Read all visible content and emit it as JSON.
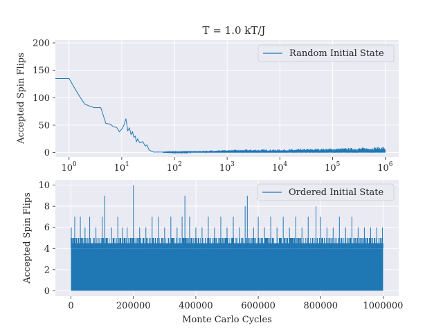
{
  "figure": {
    "title": "T = 1.0 kT/J",
    "background": "#ffffff",
    "axes_face": "#eaeaf2",
    "grid_color": "#ffffff",
    "series_color": "#1f77b4"
  },
  "chart_data": [
    {
      "type": "line",
      "title": "T = 1.0 kT/J",
      "xlabel": "",
      "ylabel": "Accepted Spin Flips",
      "xscale": "log",
      "xlim": [
        0.55,
        1800000
      ],
      "ylim": [
        -8,
        205
      ],
      "yticks": [
        0,
        50,
        100,
        150,
        200
      ],
      "yticklabels": [
        "0",
        "50",
        "100",
        "150",
        "200"
      ],
      "xticks": [
        1,
        10,
        100,
        1000,
        10000,
        100000,
        1000000
      ],
      "xticklabels": [
        "10",
        "10",
        "10",
        "10",
        "10",
        "10",
        "10"
      ],
      "xtick_exponents": [
        "0",
        "1",
        "2",
        "3",
        "4",
        "5",
        "6"
      ],
      "grid": true,
      "legend_position": "top-right",
      "series": [
        {
          "name": "Random Initial State",
          "x": [
            0.55,
            1,
            1.5,
            2,
            3,
            4,
            5,
            6,
            7,
            8,
            9,
            10,
            11,
            12,
            13,
            14,
            15,
            16,
            17,
            18,
            19,
            20,
            22,
            25,
            28,
            30,
            33,
            36,
            40,
            45,
            50,
            60,
            80,
            100,
            150,
            200,
            300,
            500,
            1000,
            3000,
            10000,
            30000,
            100000,
            300000,
            1000000
          ],
          "y": [
            135,
            135,
            106,
            88,
            82,
            82,
            53,
            52,
            47,
            46,
            38,
            43,
            50,
            62,
            40,
            45,
            33,
            38,
            28,
            30,
            20,
            25,
            18,
            20,
            12,
            14,
            5,
            3,
            1,
            1,
            1,
            1,
            2,
            1,
            2,
            2,
            2,
            2,
            3,
            3,
            3,
            4,
            5,
            5,
            6
          ],
          "noise_max": [
            0,
            0,
            0,
            0,
            0,
            0,
            0,
            0,
            0,
            0,
            0,
            0,
            0,
            0,
            0,
            0,
            0,
            0,
            0,
            0,
            0,
            0,
            0,
            0,
            0,
            0,
            0,
            0,
            0,
            0,
            0,
            0,
            1,
            2,
            2,
            3,
            3,
            4,
            5,
            6,
            6,
            7,
            8,
            9,
            11
          ]
        }
      ]
    },
    {
      "type": "line",
      "title": "",
      "xlabel": "Monte Carlo Cycles",
      "ylabel": "Accepted Spin Flips",
      "xscale": "linear",
      "xlim": [
        -50000,
        1050000
      ],
      "ylim": [
        -0.5,
        10.5
      ],
      "yticks": [
        0,
        2,
        4,
        6,
        8,
        10
      ],
      "yticklabels": [
        "0",
        "2",
        "4",
        "6",
        "8",
        "10"
      ],
      "xticks": [
        0,
        200000,
        400000,
        600000,
        800000,
        1000000
      ],
      "xticklabels": [
        "0",
        "200000",
        "400000",
        "600000",
        "800000",
        "1000000"
      ],
      "grid": true,
      "legend_position": "top-right",
      "series": [
        {
          "name": "Ordered Initial State",
          "x_range": [
            0,
            1000000
          ],
          "base_level": 4,
          "typical_max": 5,
          "spikes": [
            {
              "x": 1000,
              "y": 6
            },
            {
              "x": 12000,
              "y": 7
            },
            {
              "x": 30000,
              "y": 7
            },
            {
              "x": 45000,
              "y": 6
            },
            {
              "x": 60000,
              "y": 7
            },
            {
              "x": 80000,
              "y": 6
            },
            {
              "x": 100000,
              "y": 7
            },
            {
              "x": 108000,
              "y": 9
            },
            {
              "x": 130000,
              "y": 6
            },
            {
              "x": 150000,
              "y": 7
            },
            {
              "x": 165000,
              "y": 6
            },
            {
              "x": 180000,
              "y": 6
            },
            {
              "x": 200000,
              "y": 10
            },
            {
              "x": 220000,
              "y": 6
            },
            {
              "x": 240000,
              "y": 6
            },
            {
              "x": 260000,
              "y": 7
            },
            {
              "x": 280000,
              "y": 7
            },
            {
              "x": 300000,
              "y": 6
            },
            {
              "x": 320000,
              "y": 7
            },
            {
              "x": 340000,
              "y": 6
            },
            {
              "x": 356000,
              "y": 7
            },
            {
              "x": 365000,
              "y": 9
            },
            {
              "x": 380000,
              "y": 7
            },
            {
              "x": 400000,
              "y": 6
            },
            {
              "x": 420000,
              "y": 6
            },
            {
              "x": 440000,
              "y": 7
            },
            {
              "x": 460000,
              "y": 6
            },
            {
              "x": 480000,
              "y": 7
            },
            {
              "x": 500000,
              "y": 6
            },
            {
              "x": 520000,
              "y": 7
            },
            {
              "x": 540000,
              "y": 6
            },
            {
              "x": 558000,
              "y": 8
            },
            {
              "x": 565000,
              "y": 9
            },
            {
              "x": 585000,
              "y": 6
            },
            {
              "x": 600000,
              "y": 7
            },
            {
              "x": 620000,
              "y": 6
            },
            {
              "x": 640000,
              "y": 7
            },
            {
              "x": 660000,
              "y": 6
            },
            {
              "x": 680000,
              "y": 7
            },
            {
              "x": 700000,
              "y": 6
            },
            {
              "x": 720000,
              "y": 7
            },
            {
              "x": 740000,
              "y": 6
            },
            {
              "x": 760000,
              "y": 7
            },
            {
              "x": 785000,
              "y": 8
            },
            {
              "x": 800000,
              "y": 7
            },
            {
              "x": 820000,
              "y": 6
            },
            {
              "x": 840000,
              "y": 6
            },
            {
              "x": 860000,
              "y": 7
            },
            {
              "x": 880000,
              "y": 6
            },
            {
              "x": 900000,
              "y": 7
            },
            {
              "x": 920000,
              "y": 6
            },
            {
              "x": 940000,
              "y": 6
            },
            {
              "x": 960000,
              "y": 6
            },
            {
              "x": 980000,
              "y": 6
            },
            {
              "x": 998000,
              "y": 6
            }
          ]
        }
      ]
    }
  ]
}
